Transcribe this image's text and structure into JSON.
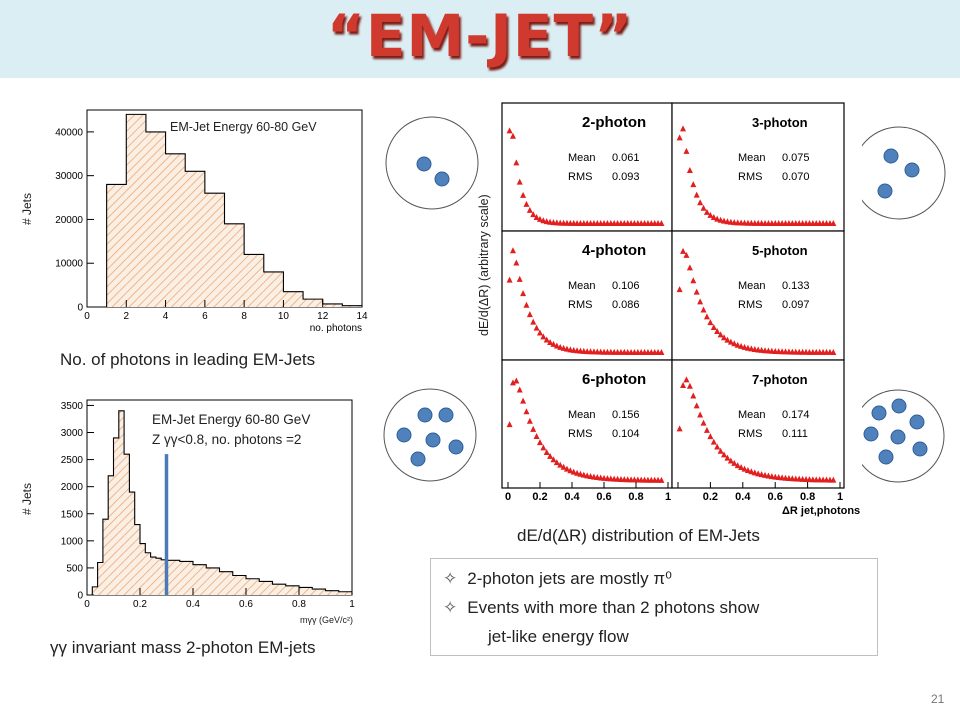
{
  "slide": {
    "title": "“EM-JET”",
    "page_number": "21",
    "colors": {
      "title_red": "#d0392e",
      "banner": "#dbeef4",
      "hist_fill": "#e9a976",
      "marker_red": "#e21f1f",
      "photon_blue": "#4f81bd",
      "cut_line": "#4a7ab8"
    },
    "hist1": {
      "annotation": "EM-Jet Energy 60-80 GeV",
      "ylabel": "# Jets",
      "xlabel": "no. photons",
      "caption": "No. of photons in leading EM-Jets"
    },
    "hist2": {
      "annotation_line1": "EM-Jet Energy 60-80 GeV",
      "annotation_line2": "Z γγ<0.8, no. photons =2",
      "ylabel": "# Jets",
      "xlabel": "mγγ (GeV/c²)",
      "caption": "γγ invariant mass 2-photon EM-jets",
      "cut_value": 0.3
    },
    "grid": {
      "ylabel": "dE/d(ΔR) (arbitrary scale)",
      "xlabel": "ΔR jet,photons",
      "caption": "dE/d(ΔR) distribution of  EM-Jets",
      "panels": [
        {
          "label": "2-photon",
          "mean_label": "Mean",
          "mean": "0.061",
          "rms_label": "RMS",
          "rms": "0.093"
        },
        {
          "label": "3-photon",
          "mean_label": "Mean",
          "mean": "0.075",
          "rms_label": "RMS",
          "rms": "0.070"
        },
        {
          "label": "4-photon",
          "mean_label": "Mean",
          "mean": "0.106",
          "rms_label": "RMS",
          "rms": "0.086"
        },
        {
          "label": "5-photon",
          "mean_label": "Mean",
          "mean": "0.133",
          "rms_label": "RMS",
          "rms": "0.097"
        },
        {
          "label": "6-photon",
          "mean_label": "Mean",
          "mean": "0.156",
          "rms_label": "RMS",
          "rms": "0.104"
        },
        {
          "label": "7-photon",
          "mean_label": "Mean",
          "mean": "0.174",
          "rms_label": "RMS",
          "rms": "0.111"
        }
      ]
    },
    "bullets": {
      "b1": "2-photon jets are mostly π⁰",
      "b2": "Events with more than 2 photons show",
      "b3": "jet-like  energy flow",
      "symbol": "✧"
    }
  },
  "chart_data": [
    {
      "type": "bar",
      "title": "EM-Jet Energy 60-80 GeV",
      "xlabel": "no. photons",
      "ylabel": "# Jets",
      "bin_edges": [
        1,
        2,
        3,
        4,
        5,
        6,
        7,
        8,
        9,
        10,
        11,
        12,
        13,
        14
      ],
      "values": [
        28000,
        44000,
        40000,
        35000,
        31000,
        26000,
        19000,
        12000,
        8000,
        3500,
        1800,
        700,
        300
      ],
      "xlim": [
        0,
        14
      ],
      "ylim": [
        0,
        45000
      ],
      "xticks": [
        0,
        2,
        4,
        6,
        8,
        10,
        12,
        14
      ],
      "yticks": [
        0,
        10000,
        20000,
        30000,
        40000
      ]
    },
    {
      "type": "bar",
      "title": "EM-Jet Energy 60-80 GeV",
      "xlabel": "mγγ (GeV/c²)",
      "ylabel": "# Jets",
      "bin_edges": [
        0.02,
        0.04,
        0.06,
        0.08,
        0.1,
        0.12,
        0.14,
        0.16,
        0.18,
        0.2,
        0.22,
        0.24,
        0.26,
        0.28,
        0.3,
        0.35,
        0.4,
        0.45,
        0.5,
        0.55,
        0.6,
        0.65,
        0.7,
        0.75,
        0.8,
        0.85,
        0.9,
        0.95,
        1.0
      ],
      "values": [
        150,
        600,
        1400,
        2200,
        2900,
        3400,
        2600,
        1900,
        1300,
        950,
        780,
        700,
        680,
        650,
        640,
        620,
        560,
        500,
        430,
        360,
        300,
        250,
        200,
        170,
        140,
        110,
        80,
        60
      ],
      "xlim": [
        0,
        1
      ],
      "ylim": [
        0,
        3600
      ],
      "xticks": [
        0,
        0.2,
        0.4,
        0.6,
        0.8,
        1
      ],
      "yticks": [
        0,
        500,
        1000,
        1500,
        2000,
        2500,
        3000,
        3500
      ]
    },
    {
      "type": "scatter",
      "xlabel": "ΔR jet,photons",
      "ylabel": "dE/d(ΔR) (arbitrary scale)",
      "xlim": [
        0,
        1
      ],
      "xticks": [
        0,
        0.2,
        0.4,
        0.6,
        0.8,
        1
      ],
      "series": [
        {
          "name": "2-photon",
          "mean": 0.061,
          "rms": 0.093
        },
        {
          "name": "3-photon",
          "mean": 0.075,
          "rms": 0.07
        },
        {
          "name": "4-photon",
          "mean": 0.106,
          "rms": 0.086
        },
        {
          "name": "5-photon",
          "mean": 0.133,
          "rms": 0.097
        },
        {
          "name": "6-photon",
          "mean": 0.156,
          "rms": 0.104
        },
        {
          "name": "7-photon",
          "mean": 0.174,
          "rms": 0.111
        }
      ]
    }
  ]
}
